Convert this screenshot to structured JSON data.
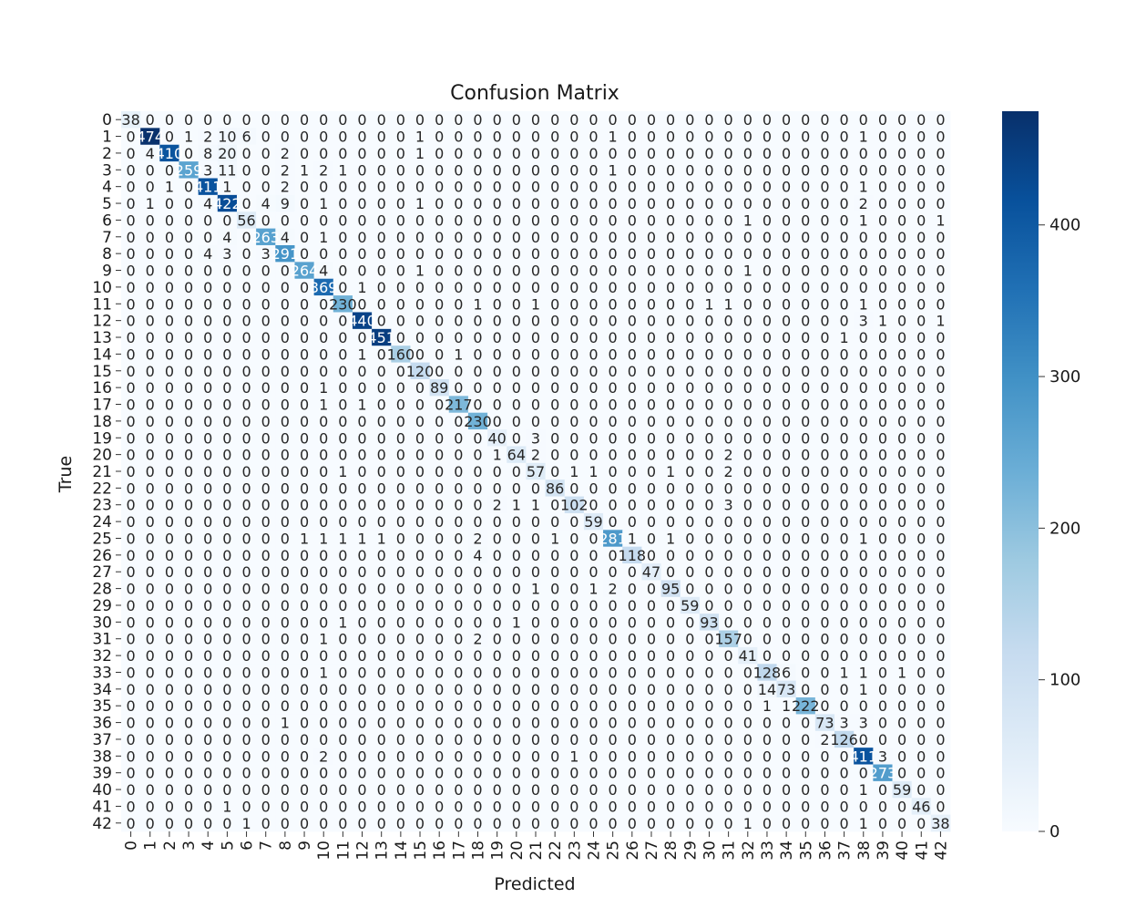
{
  "chart_data": {
    "type": "heatmap",
    "title": "Confusion Matrix",
    "xlabel": "Predicted",
    "ylabel": "True",
    "labels": [
      "0",
      "1",
      "2",
      "3",
      "4",
      "5",
      "6",
      "7",
      "8",
      "9",
      "10",
      "11",
      "12",
      "13",
      "14",
      "15",
      "16",
      "17",
      "18",
      "19",
      "20",
      "21",
      "22",
      "23",
      "24",
      "25",
      "26",
      "27",
      "28",
      "29",
      "30",
      "31",
      "32",
      "33",
      "34",
      "35",
      "36",
      "37",
      "38",
      "39",
      "40",
      "41",
      "42"
    ],
    "colormap": "Blues",
    "colorbar": {
      "min": 0,
      "max": 475,
      "ticks": [
        0,
        100,
        200,
        300,
        400
      ]
    },
    "diagonal": [
      38,
      474,
      410,
      259,
      411,
      422,
      56,
      263,
      291,
      264,
      369,
      230,
      440,
      451,
      160,
      120,
      89,
      217,
      230,
      40,
      64,
      57,
      86,
      102,
      59,
      281,
      118,
      47,
      95,
      59,
      93,
      157,
      41,
      128,
      73,
      222,
      73,
      126,
      411,
      273,
      59,
      46,
      38
    ],
    "off_diagonal": [
      {
        "row": 1,
        "col": 3,
        "v": 1
      },
      {
        "row": 1,
        "col": 4,
        "v": 2
      },
      {
        "row": 1,
        "col": 5,
        "v": 10
      },
      {
        "row": 1,
        "col": 6,
        "v": 6
      },
      {
        "row": 1,
        "col": 15,
        "v": 1
      },
      {
        "row": 1,
        "col": 25,
        "v": 1
      },
      {
        "row": 1,
        "col": 38,
        "v": 1
      },
      {
        "row": 2,
        "col": 1,
        "v": 4
      },
      {
        "row": 2,
        "col": 4,
        "v": 8
      },
      {
        "row": 2,
        "col": 5,
        "v": 20
      },
      {
        "row": 2,
        "col": 8,
        "v": 2
      },
      {
        "row": 2,
        "col": 15,
        "v": 1
      },
      {
        "row": 3,
        "col": 4,
        "v": 3
      },
      {
        "row": 3,
        "col": 5,
        "v": 11
      },
      {
        "row": 3,
        "col": 8,
        "v": 2
      },
      {
        "row": 3,
        "col": 9,
        "v": 1
      },
      {
        "row": 3,
        "col": 10,
        "v": 2
      },
      {
        "row": 3,
        "col": 11,
        "v": 1
      },
      {
        "row": 3,
        "col": 25,
        "v": 1
      },
      {
        "row": 4,
        "col": 2,
        "v": 1
      },
      {
        "row": 4,
        "col": 5,
        "v": 1
      },
      {
        "row": 4,
        "col": 8,
        "v": 2
      },
      {
        "row": 4,
        "col": 38,
        "v": 1
      },
      {
        "row": 5,
        "col": 1,
        "v": 1
      },
      {
        "row": 5,
        "col": 4,
        "v": 4
      },
      {
        "row": 5,
        "col": 7,
        "v": 4
      },
      {
        "row": 5,
        "col": 8,
        "v": 9
      },
      {
        "row": 5,
        "col": 10,
        "v": 1
      },
      {
        "row": 5,
        "col": 15,
        "v": 1
      },
      {
        "row": 5,
        "col": 38,
        "v": 2
      },
      {
        "row": 6,
        "col": 32,
        "v": 1
      },
      {
        "row": 6,
        "col": 38,
        "v": 1
      },
      {
        "row": 6,
        "col": 42,
        "v": 1
      },
      {
        "row": 7,
        "col": 5,
        "v": 4
      },
      {
        "row": 7,
        "col": 8,
        "v": 4
      },
      {
        "row": 7,
        "col": 10,
        "v": 1
      },
      {
        "row": 8,
        "col": 4,
        "v": 4
      },
      {
        "row": 8,
        "col": 5,
        "v": 3
      },
      {
        "row": 8,
        "col": 7,
        "v": 3
      },
      {
        "row": 9,
        "col": 10,
        "v": 4
      },
      {
        "row": 9,
        "col": 15,
        "v": 1
      },
      {
        "row": 9,
        "col": 32,
        "v": 1
      },
      {
        "row": 10,
        "col": 12,
        "v": 1
      },
      {
        "row": 11,
        "col": 18,
        "v": 1
      },
      {
        "row": 11,
        "col": 21,
        "v": 1
      },
      {
        "row": 11,
        "col": 30,
        "v": 1
      },
      {
        "row": 11,
        "col": 31,
        "v": 1
      },
      {
        "row": 11,
        "col": 38,
        "v": 1
      },
      {
        "row": 12,
        "col": 38,
        "v": 3
      },
      {
        "row": 12,
        "col": 39,
        "v": 1
      },
      {
        "row": 12,
        "col": 42,
        "v": 1
      },
      {
        "row": 13,
        "col": 37,
        "v": 1
      },
      {
        "row": 14,
        "col": 12,
        "v": 1
      },
      {
        "row": 14,
        "col": 17,
        "v": 1
      },
      {
        "row": 16,
        "col": 10,
        "v": 1
      },
      {
        "row": 17,
        "col": 10,
        "v": 1
      },
      {
        "row": 17,
        "col": 12,
        "v": 1
      },
      {
        "row": 19,
        "col": 21,
        "v": 3
      },
      {
        "row": 20,
        "col": 19,
        "v": 1
      },
      {
        "row": 20,
        "col": 21,
        "v": 2
      },
      {
        "row": 20,
        "col": 31,
        "v": 2
      },
      {
        "row": 21,
        "col": 11,
        "v": 1
      },
      {
        "row": 21,
        "col": 23,
        "v": 1
      },
      {
        "row": 21,
        "col": 24,
        "v": 1
      },
      {
        "row": 21,
        "col": 28,
        "v": 1
      },
      {
        "row": 21,
        "col": 31,
        "v": 2
      },
      {
        "row": 23,
        "col": 19,
        "v": 2
      },
      {
        "row": 23,
        "col": 20,
        "v": 1
      },
      {
        "row": 23,
        "col": 21,
        "v": 1
      },
      {
        "row": 23,
        "col": 31,
        "v": 3
      },
      {
        "row": 25,
        "col": 9,
        "v": 1
      },
      {
        "row": 25,
        "col": 10,
        "v": 1
      },
      {
        "row": 25,
        "col": 11,
        "v": 1
      },
      {
        "row": 25,
        "col": 12,
        "v": 1
      },
      {
        "row": 25,
        "col": 13,
        "v": 1
      },
      {
        "row": 25,
        "col": 18,
        "v": 2
      },
      {
        "row": 25,
        "col": 22,
        "v": 1
      },
      {
        "row": 25,
        "col": 26,
        "v": 1
      },
      {
        "row": 25,
        "col": 28,
        "v": 1
      },
      {
        "row": 25,
        "col": 38,
        "v": 1
      },
      {
        "row": 26,
        "col": 18,
        "v": 4
      },
      {
        "row": 28,
        "col": 21,
        "v": 1
      },
      {
        "row": 28,
        "col": 24,
        "v": 1
      },
      {
        "row": 28,
        "col": 25,
        "v": 2
      },
      {
        "row": 30,
        "col": 11,
        "v": 1
      },
      {
        "row": 30,
        "col": 20,
        "v": 1
      },
      {
        "row": 31,
        "col": 10,
        "v": 1
      },
      {
        "row": 31,
        "col": 18,
        "v": 2
      },
      {
        "row": 33,
        "col": 10,
        "v": 1
      },
      {
        "row": 33,
        "col": 34,
        "v": 6
      },
      {
        "row": 33,
        "col": 37,
        "v": 1
      },
      {
        "row": 33,
        "col": 38,
        "v": 1
      },
      {
        "row": 33,
        "col": 40,
        "v": 1
      },
      {
        "row": 34,
        "col": 33,
        "v": 14
      },
      {
        "row": 34,
        "col": 38,
        "v": 1
      },
      {
        "row": 35,
        "col": 33,
        "v": 1
      },
      {
        "row": 35,
        "col": 34,
        "v": 1
      },
      {
        "row": 36,
        "col": 8,
        "v": 1
      },
      {
        "row": 36,
        "col": 37,
        "v": 3
      },
      {
        "row": 36,
        "col": 38,
        "v": 3
      },
      {
        "row": 37,
        "col": 36,
        "v": 2
      },
      {
        "row": 38,
        "col": 10,
        "v": 2
      },
      {
        "row": 38,
        "col": 23,
        "v": 1
      },
      {
        "row": 38,
        "col": 39,
        "v": 3
      },
      {
        "row": 40,
        "col": 38,
        "v": 1
      },
      {
        "row": 41,
        "col": 5,
        "v": 1
      },
      {
        "row": 42,
        "col": 6,
        "v": 1
      },
      {
        "row": 42,
        "col": 32,
        "v": 1
      },
      {
        "row": 42,
        "col": 38,
        "v": 1
      }
    ]
  }
}
